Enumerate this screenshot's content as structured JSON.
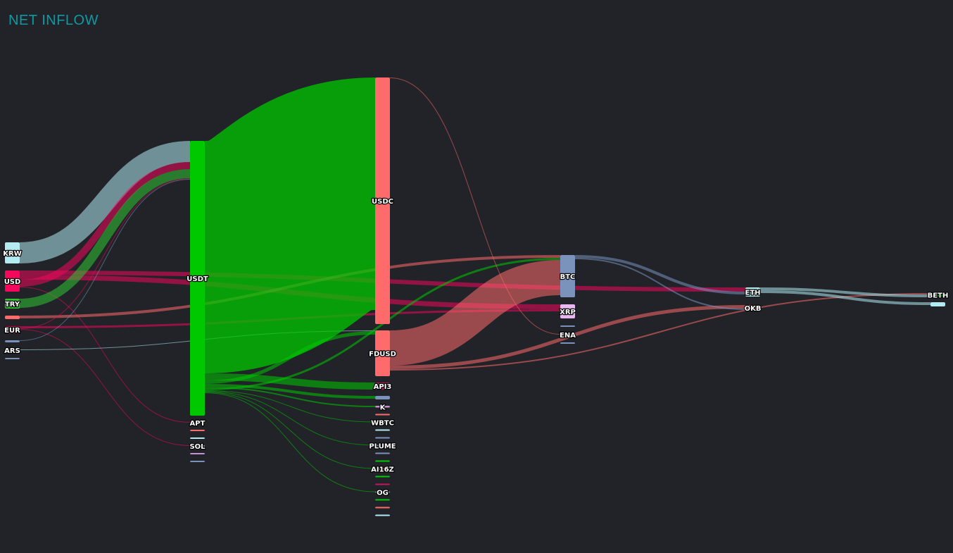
{
  "header": {
    "title": "NET INFLOW"
  },
  "chart_data": {
    "type": "sankey",
    "title": "NET INFLOW",
    "columns": [
      [
        "KRW",
        "USD",
        "TRY",
        "fiat-4",
        "EUR",
        "fiat-6",
        "ARS",
        "fiat-8"
      ],
      [
        "USDT",
        "APT",
        "s2-3",
        "s2-4",
        "SOL",
        "s2-6",
        "s2-7"
      ],
      [
        "USDC",
        "FDUSD",
        "API3",
        "c3-4",
        "K",
        "c3-6",
        "WBTC",
        "c3-8",
        "c3-9",
        "PLUME",
        "c3-11",
        "c3-12",
        "AI16Z",
        "c3-14",
        "c3-15",
        "OG",
        "c3-17",
        "c3-18",
        "c3-19"
      ],
      [
        "BTC",
        "XRP",
        "c4-3",
        "ENA",
        "c4-5"
      ],
      [
        "ETH",
        "OKB"
      ],
      [
        "BETH",
        "c6-2"
      ]
    ],
    "labels": {
      "KRW": "KRW",
      "USD": "USD",
      "TRY": "TRY",
      "EUR": "EUR",
      "ARS": "ARS",
      "USDT": "USDT",
      "APT": "APT",
      "SOL": "SOL",
      "USDC": "USDC",
      "FDUSD": "FDUSD",
      "API3": "API3",
      "K": "K",
      "WBTC": "WBTC",
      "PLUME": "PLUME",
      "AI16Z": "AI16Z",
      "OG": "OG",
      "BTC": "BTC",
      "XRP": "XRP",
      "ENA": "ENA",
      "ETH": "ETH",
      "OKB": "OKB",
      "BETH": "BETH"
    },
    "node_colors": {
      "KRW": "#b2ebf2",
      "USD": "#f2085c",
      "TRY": "#31c431",
      "fiat-4": "#ff6b6b",
      "EUR": "#f2085c",
      "fiat-6": "#7a93bd",
      "ARS": "#b2ebf2",
      "fiat-8": "#7a93bd",
      "USDT": "#00c800",
      "APT": "#00c800",
      "s2-3": "#ff6b6b",
      "s2-4": "#b2ebf2",
      "SOL": "#7a93bd",
      "s2-6": "#c98fd1",
      "s2-7": "#7a93bd",
      "USDC": "#ff6b6b",
      "FDUSD": "#ff6b6b",
      "API3": "#c2185b",
      "c3-4": "#7a93bd",
      "K": "#c98fd1",
      "c3-6": "#ff6b6b",
      "WBTC": "#7a93bd",
      "c3-8": "#b2ebf2",
      "c3-9": "#7a93bd",
      "PLUME": "#7a93bd",
      "c3-11": "#7a93bd",
      "c3-12": "#00c800",
      "AI16Z": "#ff6b6b",
      "c3-14": "#00c800",
      "c3-15": "#c2185b",
      "OG": "#7a93bd",
      "c3-17": "#00c800",
      "c3-18": "#ff6b6b",
      "c3-19": "#b2ebf2",
      "BTC": "#7a93bd",
      "XRP": "#e9b7f0",
      "c4-3": "#7a93bd",
      "ENA": "#b2ebf2",
      "c4-5": "#7a93bd",
      "ETH": "#b2ebf2",
      "OKB": "#ff6b6b",
      "BETH": "#00c800",
      "c6-2": "#b2ebf2"
    },
    "node_values": {
      "KRW": 30,
      "USD": 30,
      "TRY": 14,
      "fiat-4": 5,
      "EUR": 10,
      "fiat-6": 3,
      "ARS": 1.5,
      "fiat-8": 1.5,
      "USDT": 390,
      "APT": 2,
      "s2-3": 1,
      "s2-4": 1,
      "SOL": 1.5,
      "s2-6": 1,
      "s2-7": 1,
      "USDC": 350,
      "FDUSD": 65,
      "API3": 10,
      "c3-4": 5,
      "K": 2.5,
      "c3-6": 2,
      "WBTC": 2,
      "c3-8": 1,
      "c3-9": 1,
      "PLUME": 1,
      "c3-11": 1,
      "c3-12": 1,
      "AI16Z": 1,
      "c3-14": 1,
      "c3-15": 1,
      "OG": 1,
      "c3-17": 1,
      "c3-18": 1,
      "c3-19": 1,
      "BTC": 60,
      "XRP": 20,
      "c4-3": 1,
      "ENA": 2,
      "c4-5": 1,
      "ETH": 13,
      "OKB": 8,
      "BETH": 5,
      "c6-2": 6
    },
    "flows": [
      {
        "source": "KRW",
        "target": "USDT",
        "value": 30
      },
      {
        "source": "USD",
        "target": "ETH",
        "value": 6
      },
      {
        "source": "USD",
        "target": "XRP",
        "value": 7
      },
      {
        "source": "USD",
        "target": "USDT",
        "value": 10
      },
      {
        "source": "USD",
        "target": "APT",
        "value": 1
      },
      {
        "source": "TRY",
        "target": "USDT",
        "value": 13
      },
      {
        "source": "fiat-4",
        "target": "BTC",
        "value": 4
      },
      {
        "source": "EUR",
        "target": "XRP",
        "value": 3
      },
      {
        "source": "EUR",
        "target": "USDT",
        "value": 1
      },
      {
        "source": "EUR",
        "target": "SOL",
        "value": 1
      },
      {
        "source": "fiat-6",
        "target": "USDT",
        "value": 1
      },
      {
        "source": "ARS",
        "target": "FDUSD",
        "value": 1
      },
      {
        "source": "USDT",
        "target": "USDC",
        "value": 330
      },
      {
        "source": "USDT",
        "target": "API3",
        "value": 10
      },
      {
        "source": "USDT",
        "target": "FDUSD",
        "value": 5
      },
      {
        "source": "USDT",
        "target": "c3-4",
        "value": 4
      },
      {
        "source": "USDT",
        "target": "K",
        "value": 2
      },
      {
        "source": "USDT",
        "target": "BTC",
        "value": 3
      },
      {
        "source": "USDT",
        "target": "WBTC",
        "value": 1
      },
      {
        "source": "USDT",
        "target": "PLUME",
        "value": 1
      },
      {
        "source": "USDT",
        "target": "AI16Z",
        "value": 1
      },
      {
        "source": "USDT",
        "target": "OG",
        "value": 1
      },
      {
        "source": "USDC",
        "target": "ENA",
        "value": 1
      },
      {
        "source": "FDUSD",
        "target": "BTC",
        "value": 50
      },
      {
        "source": "FDUSD",
        "target": "OKB",
        "value": 5
      },
      {
        "source": "FDUSD",
        "target": "BETH",
        "value": 2
      },
      {
        "source": "BTC",
        "target": "ETH",
        "value": 4
      },
      {
        "source": "BTC",
        "target": "OKB",
        "value": 2
      },
      {
        "source": "ETH",
        "target": "BETH",
        "value": 4
      },
      {
        "source": "ETH",
        "target": "c6-2",
        "value": 4
      }
    ]
  }
}
